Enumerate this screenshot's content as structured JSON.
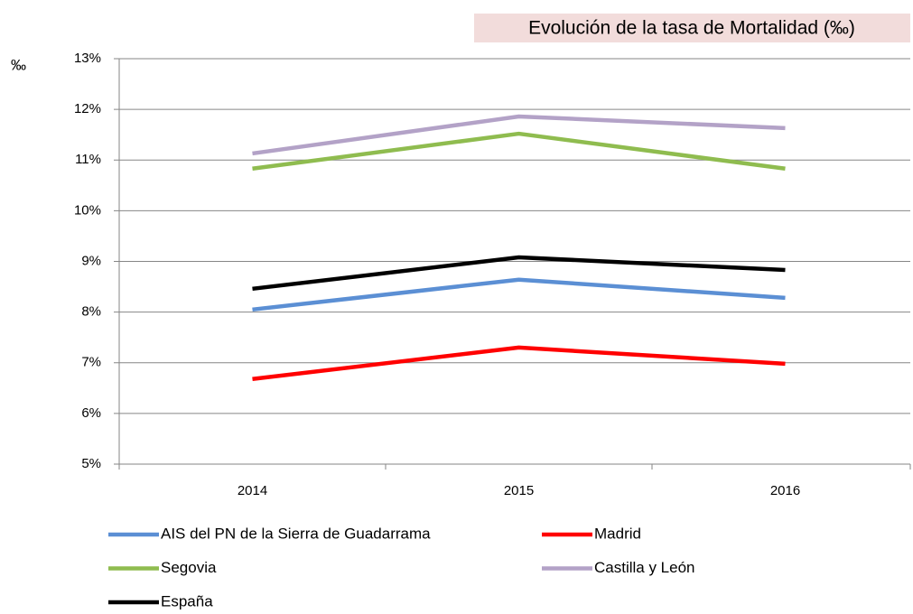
{
  "chart_data": {
    "type": "line",
    "title": "Evolución de la tasa de Mortalidad (‰)",
    "y_label": "‰",
    "categories": [
      "2014",
      "2015",
      "2016"
    ],
    "series": [
      {
        "name": "AIS del PN de la Sierra de Guadarrama",
        "color": "#5b8fd4",
        "values": [
          8.05,
          8.64,
          8.28
        ]
      },
      {
        "name": "Madrid",
        "color": "#ff0000",
        "values": [
          6.68,
          7.3,
          6.98
        ]
      },
      {
        "name": "Segovia",
        "color": "#8fbc4f",
        "values": [
          10.83,
          11.52,
          10.83
        ]
      },
      {
        "name": "Castilla y León",
        "color": "#b3a2c7",
        "values": [
          11.13,
          11.86,
          11.63
        ]
      },
      {
        "name": "España",
        "color": "#000000",
        "values": [
          8.46,
          9.08,
          8.83
        ]
      }
    ],
    "ylim": [
      5,
      13
    ],
    "yticks": [
      {
        "value": 5,
        "label": "5%"
      },
      {
        "value": 6,
        "label": "6%"
      },
      {
        "value": 7,
        "label": "7%"
      },
      {
        "value": 8,
        "label": "8%"
      },
      {
        "value": 9,
        "label": "9%"
      },
      {
        "value": 10,
        "label": "10%"
      },
      {
        "value": 11,
        "label": "11%"
      },
      {
        "value": 12,
        "label": "12%"
      },
      {
        "value": 13,
        "label": "13%"
      }
    ],
    "grid": true
  }
}
